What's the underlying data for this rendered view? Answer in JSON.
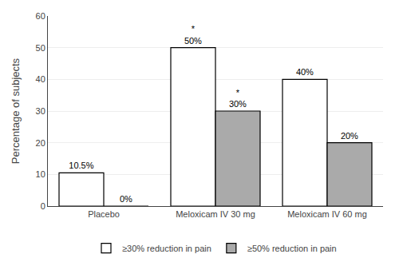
{
  "chart_data": {
    "type": "bar",
    "categories": [
      "Placebo",
      "Meloxicam IV 30 mg",
      "Meloxicam IV 60 mg"
    ],
    "series": [
      {
        "name": "≥30% reduction in pain",
        "color": "#ffffff",
        "values": [
          10.5,
          50,
          40
        ],
        "value_labels": [
          "10.5%",
          "50%",
          "40%"
        ]
      },
      {
        "name": "≥50% reduction in pain",
        "color": "#aaaaaa",
        "values": [
          0,
          30,
          20
        ],
        "value_labels": [
          "0%",
          "30%",
          "20%"
        ]
      }
    ],
    "ylabel": "Percentage of subjects",
    "ylim": [
      0,
      60
    ],
    "yticks": [
      0,
      10,
      20,
      30,
      40,
      50,
      60
    ],
    "grid": true,
    "legend": "bottom",
    "data_labels": true,
    "annotations": [
      {
        "text": "*",
        "category": "Meloxicam IV 30 mg",
        "series": "≥30% reduction in pain"
      },
      {
        "text": "*",
        "category": "Meloxicam IV 30 mg",
        "series": "≥50% reduction in pain"
      }
    ]
  }
}
